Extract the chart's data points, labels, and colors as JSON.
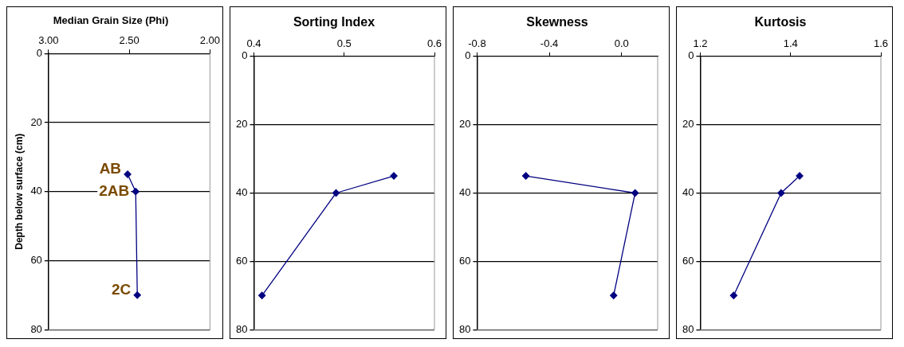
{
  "chart_data": [
    {
      "type": "line",
      "title": "Median Grain Size (Phi)",
      "ylabel": "Depth below surface (cm)",
      "x": [
        2.51,
        2.46,
        2.45
      ],
      "values": [
        35,
        40,
        70
      ],
      "color": "#000080",
      "marker": "diamond",
      "line_style": "solid",
      "xlim": [
        3,
        2
      ],
      "xticks": [
        {
          "value": 3,
          "label": "3.00"
        },
        {
          "value": 2.5,
          "label": "2.50"
        },
        {
          "value": 2,
          "label": "2.00"
        }
      ],
      "ylim": [
        80,
        0
      ],
      "yticks": [
        0,
        20,
        40,
        60,
        80
      ],
      "grid": "y",
      "annotations": [
        {
          "text": "AB",
          "x": 2.51,
          "y": 35
        },
        {
          "text": "2AB",
          "x": 2.46,
          "y": 40
        },
        {
          "text": "2C",
          "x": 2.45,
          "y": 70
        }
      ]
    },
    {
      "type": "line",
      "title": "Sorting Index",
      "x": [
        0.555,
        0.491,
        0.409
      ],
      "values": [
        35,
        40,
        70
      ],
      "color": "#000080",
      "marker": "diamond",
      "line_style": "solid",
      "xlim": [
        0.4,
        0.6
      ],
      "xticks": [
        0.4,
        0.5,
        0.6
      ],
      "ylim": [
        80,
        0
      ],
      "yticks": [
        0,
        20,
        40,
        60,
        80
      ],
      "grid": "y"
    },
    {
      "type": "line",
      "title": "Skewness",
      "x": [
        -0.53,
        0.075,
        -0.044
      ],
      "values": [
        35,
        40,
        70
      ],
      "color": "#000080",
      "marker": "diamond",
      "line_style": "solid",
      "xlim": [
        -0.8,
        0.2
      ],
      "xticks": [
        -0.8,
        -0.4,
        {
          "value": 0,
          "label": "0.0"
        }
      ],
      "ylim": [
        80,
        0
      ],
      "yticks": [
        0,
        20,
        40,
        60,
        80
      ],
      "grid": "y"
    },
    {
      "type": "line",
      "title": "Kurtosis",
      "x": [
        1.42,
        1.379,
        1.274
      ],
      "values": [
        35,
        40,
        70
      ],
      "color": "#000080",
      "marker": "diamond",
      "line_style": "solid",
      "xlim": [
        1.2,
        1.6
      ],
      "xticks": [
        1.2,
        1.4,
        1.6
      ],
      "ylim": [
        80,
        0
      ],
      "yticks": [
        0,
        20,
        40,
        60,
        80
      ],
      "grid": "y"
    }
  ]
}
